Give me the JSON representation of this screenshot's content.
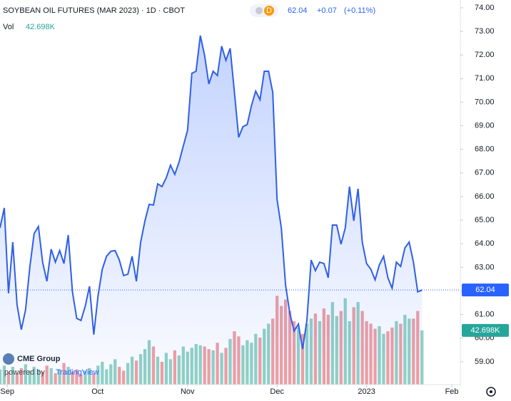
{
  "header": {
    "title": "SOYBEAN OIL FUTURES (MAR 2023) · 1D · CBOT",
    "badge": "D",
    "price": "62.04",
    "change": "+0.07",
    "change_pct": "(+0.11%)",
    "vol_label": "Vol",
    "vol_value": "42.698K",
    "logo": "CME Group",
    "powered": "powered by",
    "brand": "TradingView"
  },
  "chart_data": {
    "type": "line",
    "color": "#2f5fe8",
    "values": [
      64.67,
      65.52,
      61.9,
      64.07,
      61.41,
      60.36,
      61.2,
      63.01,
      64.43,
      64.73,
      63.22,
      62.41,
      63.77,
      63.22,
      63.71,
      63.16,
      64.37,
      61.96,
      60.84,
      60.75,
      61.35,
      62.2,
      60.15,
      61.8,
      62.92,
      63.47,
      63.68,
      63.71,
      63.31,
      62.65,
      62.71,
      63.47,
      62.41,
      64.07,
      64.97,
      65.67,
      65.64,
      66.54,
      66.42,
      66.79,
      67.33,
      66.94,
      67.45,
      68.14,
      68.81,
      71.22,
      71.31,
      72.82,
      71.98,
      70.77,
      71.31,
      71.13,
      72.37,
      71.77,
      72.28,
      70.41,
      68.51,
      68.96,
      69.05,
      69.86,
      70.47,
      70.1,
      71.31,
      71.31,
      70.41,
      65.88,
      64.67,
      62.26,
      61.05,
      60.3,
      60.6,
      59.54,
      60.75,
      63.31,
      62.86,
      63.22,
      63.16,
      62.56,
      64.79,
      64.79,
      63.98,
      64.67,
      66.42,
      64.97,
      66.33,
      64.07,
      63.16,
      62.92,
      62.47,
      63.1,
      63.47,
      62.56,
      62.11,
      63.22,
      63.04,
      63.83,
      64.07,
      63.22,
      61.96,
      62.04
    ],
    "xlim": [
      0,
      108
    ],
    "xticks": [
      {
        "value": 1.7,
        "label": "Sep"
      },
      {
        "value": 22.9,
        "label": "Oct"
      },
      {
        "value": 44,
        "label": "Nov"
      },
      {
        "value": 65,
        "label": "Dec"
      },
      {
        "value": 86,
        "label": "2023"
      },
      {
        "value": 106,
        "label": "Feb"
      }
    ],
    "ylim": [
      58.03,
      74.33
    ],
    "yticks": [
      {
        "value": 74,
        "label": "74.00"
      },
      {
        "value": 73,
        "label": "73.00"
      },
      {
        "value": 72,
        "label": "72.00"
      },
      {
        "value": 71,
        "label": "71.00"
      },
      {
        "value": 70,
        "label": "70.00"
      },
      {
        "value": 69,
        "label": "69.00"
      },
      {
        "value": 68,
        "label": "68.00"
      },
      {
        "value": 67,
        "label": "67.00"
      },
      {
        "value": 66,
        "label": "66.00"
      },
      {
        "value": 65,
        "label": "65.00"
      },
      {
        "value": 64,
        "label": "64.00"
      },
      {
        "value": 63,
        "label": "63.00"
      },
      {
        "value": 62,
        "label": "62.00"
      },
      {
        "value": 61,
        "label": "61.00"
      },
      {
        "value": 60,
        "label": "60.00"
      },
      {
        "value": 59,
        "label": "59.00"
      }
    ],
    "volume": {
      "up_color": "#92d2c4",
      "down_color": "#f0a0a3",
      "axis": "y2",
      "values": [
        12000,
        15000,
        10000,
        14000,
        9000,
        13000,
        16000,
        11000,
        14000,
        12000,
        10000,
        15000,
        13000,
        9000,
        12000,
        17000,
        14000,
        10000,
        12000,
        8000,
        11000,
        13000,
        9000,
        15000,
        18000,
        12000,
        16000,
        20000,
        14000,
        11000,
        17000,
        22000,
        19000,
        24000,
        28000,
        35000,
        30000,
        22000,
        18000,
        25000,
        20000,
        27000,
        23000,
        30000,
        26000,
        29000,
        32000,
        31000,
        30000,
        28000,
        27000,
        33000,
        25000,
        29000,
        36000,
        42000,
        38000,
        31000,
        35000,
        33000,
        40000,
        37000,
        44000,
        48000,
        52000,
        70000,
        62000,
        67000,
        58000,
        50000,
        45000,
        40000,
        48000,
        52000,
        56000,
        50000,
        60000,
        55000,
        65000,
        54000,
        58000,
        68000,
        50000,
        61000,
        65000,
        58000,
        50000,
        48000,
        44000,
        46000,
        40000,
        42000,
        45000,
        50000,
        48000,
        55000,
        52000,
        52000,
        58000,
        42698
      ],
      "last_label": "42.698K"
    },
    "y2lim": [
      0,
      303000
    ],
    "last_color": "#2962ff",
    "volume_box_color": "#26a69a"
  }
}
